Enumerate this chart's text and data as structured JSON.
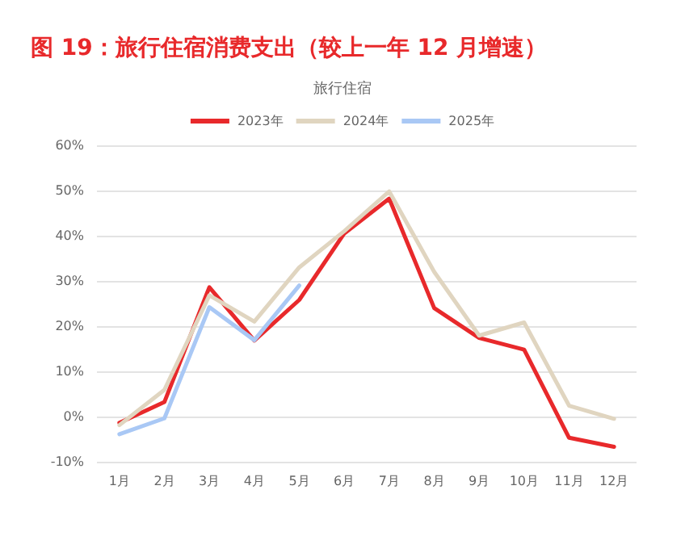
{
  "chart_data": {
    "type": "line",
    "title": "图 19：旅行住宿消费支出（较上一年 12 月增速）",
    "subtitle": "旅行住宿",
    "categories": [
      "1月",
      "2月",
      "3月",
      "4月",
      "5月",
      "6月",
      "7月",
      "8月",
      "9月",
      "10月",
      "11月",
      "12月"
    ],
    "series": [
      {
        "name": "2023年",
        "color": "#e8292b",
        "values": [
          -1.4,
          3.2,
          28.6,
          16.8,
          25.8,
          40.5,
          48.2,
          24,
          17.4,
          14.8,
          -4.7,
          -6.7
        ]
      },
      {
        "name": "2024年",
        "color": "#e0d5c0",
        "values": [
          -1.9,
          5.9,
          26.8,
          21,
          33,
          41,
          49.8,
          32,
          17.9,
          20.8,
          2.4,
          -0.5
        ]
      },
      {
        "name": "2025年",
        "color": "#a9c8f5",
        "values": [
          -3.9,
          -0.4,
          24.2,
          16.9,
          29,
          null,
          null,
          null,
          null,
          null,
          null,
          null
        ]
      }
    ],
    "ylim": [
      -10,
      60
    ],
    "yticks": [
      {
        "value": -10,
        "label": "-10%"
      },
      {
        "value": 0,
        "label": "0%"
      },
      {
        "value": 10,
        "label": "10%"
      },
      {
        "value": 20,
        "label": "20%"
      },
      {
        "value": 30,
        "label": "30%"
      },
      {
        "value": 40,
        "label": "40%"
      },
      {
        "value": 50,
        "label": "50%"
      },
      {
        "value": 60,
        "label": "60%"
      }
    ],
    "grid": "y",
    "legend": "top",
    "marker": "none",
    "line_style": "solid"
  }
}
